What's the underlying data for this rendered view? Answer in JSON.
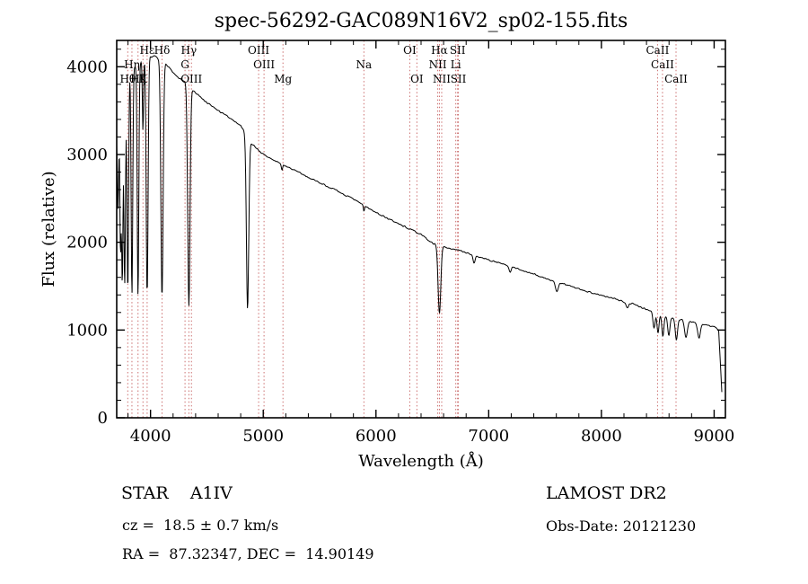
{
  "title": "spec-56292-GAC089N16V2_sp02-155.fits",
  "footer": {
    "class_label": "STAR    A1IV",
    "survey": "LAMOST DR2",
    "cz": "cz =  18.5 ± 0.7 km/s",
    "obs_date": "Obs-Date: 20121230",
    "coords": "RA =  87.32347, DEC =  14.90149"
  },
  "chart_data": {
    "type": "line",
    "title": "spec-56292-GAC089N16V2_sp02-155.fits",
    "xlabel": "Wavelength (Å)",
    "ylabel": "Flux (relative)",
    "xlim": [
      3700,
      9100
    ],
    "ylim": [
      0,
      4300
    ],
    "xticks": [
      4000,
      5000,
      6000,
      7000,
      8000,
      9000
    ],
    "yticks": [
      0,
      1000,
      2000,
      3000,
      4000
    ],
    "x_minor_step": 200,
    "y_minor_step": 200,
    "data_end": 9070,
    "line_color": "#000000",
    "feature_line_color": "#cc7070",
    "grid": false,
    "legend": "none",
    "continuum": [
      [
        3700,
        3250
      ],
      [
        3760,
        3900
      ],
      [
        3820,
        3980
      ],
      [
        3880,
        4020
      ],
      [
        3960,
        4100
      ],
      [
        4040,
        4120
      ],
      [
        4120,
        4060
      ],
      [
        4200,
        3930
      ],
      [
        4300,
        3830
      ],
      [
        4400,
        3700
      ],
      [
        4500,
        3590
      ],
      [
        4600,
        3500
      ],
      [
        4700,
        3420
      ],
      [
        4800,
        3330
      ],
      [
        4900,
        3120
      ],
      [
        5000,
        3000
      ],
      [
        5100,
        2930
      ],
      [
        5200,
        2870
      ],
      [
        5400,
        2740
      ],
      [
        5600,
        2620
      ],
      [
        5800,
        2490
      ],
      [
        6000,
        2340
      ],
      [
        6200,
        2210
      ],
      [
        6400,
        2090
      ],
      [
        6500,
        1990
      ],
      [
        6600,
        1950
      ],
      [
        6700,
        1920
      ],
      [
        6900,
        1840
      ],
      [
        7100,
        1760
      ],
      [
        7300,
        1680
      ],
      [
        7500,
        1590
      ],
      [
        7700,
        1510
      ],
      [
        7900,
        1430
      ],
      [
        8100,
        1360
      ],
      [
        8300,
        1290
      ],
      [
        8450,
        1210
      ],
      [
        8600,
        1150
      ],
      [
        8800,
        1090
      ],
      [
        9000,
        1040
      ],
      [
        9040,
        1000
      ],
      [
        9080,
        0
      ]
    ],
    "absorption_lines": [
      [
        3712,
        6,
        1000
      ],
      [
        3734,
        6,
        1700
      ],
      [
        3750,
        6,
        2200
      ],
      [
        3771,
        7,
        2400
      ],
      [
        3798,
        7,
        2500
      ],
      [
        3835,
        7,
        2600
      ],
      [
        3889,
        7,
        2650
      ],
      [
        3933,
        5,
        800
      ],
      [
        3970,
        8,
        2700
      ],
      [
        4102,
        10,
        2700
      ],
      [
        4340,
        10,
        2500
      ],
      [
        4861,
        10,
        1960
      ],
      [
        5167,
        6,
        70
      ],
      [
        5893,
        5,
        70
      ],
      [
        6563,
        12,
        770
      ],
      [
        6870,
        9,
        90
      ],
      [
        7190,
        10,
        60
      ],
      [
        7605,
        13,
        110
      ],
      [
        8230,
        10,
        60
      ],
      [
        8467,
        9,
        180
      ],
      [
        8502,
        9,
        220
      ],
      [
        8545,
        9,
        240
      ],
      [
        8598,
        10,
        210
      ],
      [
        8665,
        10,
        240
      ],
      [
        8750,
        12,
        190
      ],
      [
        8865,
        12,
        160
      ]
    ],
    "features": [
      {
        "label": "Hε",
        "wavelength": 3970,
        "row": 1
      },
      {
        "label": "Hδ",
        "wavelength": 4102,
        "row": 1
      },
      {
        "label": "Hγ",
        "wavelength": 4340,
        "row": 1
      },
      {
        "label": "OIII",
        "wavelength": 4959,
        "row": 1
      },
      {
        "label": "OI",
        "wavelength": 6300,
        "row": 1
      },
      {
        "label": "Hα",
        "wavelength": 6563,
        "row": 1
      },
      {
        "label": "SII",
        "wavelength": 6724,
        "row": 1
      },
      {
        "label": "CaII",
        "wavelength": 8498,
        "row": 1
      },
      {
        "label": "Hη",
        "wavelength": 3835,
        "row": 2
      },
      {
        "label": "G",
        "wavelength": 4306,
        "row": 2
      },
      {
        "label": "OIII",
        "wavelength": 5007,
        "row": 2
      },
      {
        "label": "Na",
        "wavelength": 5893,
        "row": 2
      },
      {
        "label": "NII",
        "wavelength": 6548,
        "row": 2
      },
      {
        "label": "Li",
        "wavelength": 6708,
        "row": 2
      },
      {
        "label": "CaII",
        "wavelength": 8542,
        "row": 2
      },
      {
        "label": "Hθ",
        "wavelength": 3798,
        "row": 3
      },
      {
        "label": "Hζ",
        "wavelength": 3889,
        "row": 3
      },
      {
        "label": "K",
        "wavelength": 3933,
        "row": 3
      },
      {
        "label": "OIII",
        "wavelength": 4363,
        "row": 3
      },
      {
        "label": "Mg",
        "wavelength": 5175,
        "row": 3
      },
      {
        "label": "OI",
        "wavelength": 6363,
        "row": 3
      },
      {
        "label": "NII",
        "wavelength": 6583,
        "row": 3
      },
      {
        "label": "SII",
        "wavelength": 6731,
        "row": 3
      },
      {
        "label": "CaII",
        "wavelength": 8662,
        "row": 3
      }
    ],
    "noise_amp": 14,
    "seed": 7
  }
}
